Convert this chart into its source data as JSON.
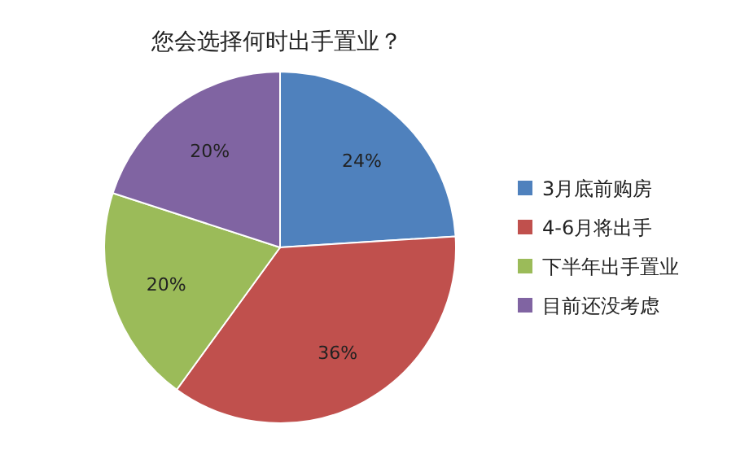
{
  "chart_data": {
    "type": "pie",
    "title": "您会选择何时出手置业？",
    "categories": [
      "3月底前购房",
      "4-6月将出手",
      "下半年出手置业",
      "目前还没考虑"
    ],
    "values": [
      24,
      36,
      20,
      20
    ],
    "value_labels": [
      "24%",
      "36%",
      "20%",
      "20%"
    ],
    "colors": [
      "#4f81bd",
      "#c0504d",
      "#9bbb59",
      "#8064a2"
    ],
    "legend": "right"
  }
}
